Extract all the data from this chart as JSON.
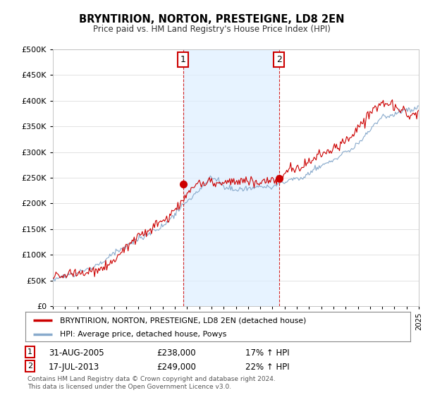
{
  "title": "BRYNTIRION, NORTON, PRESTEIGNE, LD8 2EN",
  "subtitle": "Price paid vs. HM Land Registry's House Price Index (HPI)",
  "legend_line1": "BRYNTIRION, NORTON, PRESTEIGNE, LD8 2EN (detached house)",
  "legend_line2": "HPI: Average price, detached house, Powys",
  "annotation1_label": "1",
  "annotation1_date": "31-AUG-2005",
  "annotation1_price": "£238,000",
  "annotation1_hpi": "17% ↑ HPI",
  "annotation1_year": 2005.67,
  "annotation1_value": 238000,
  "annotation2_label": "2",
  "annotation2_date": "17-JUL-2013",
  "annotation2_price": "£249,000",
  "annotation2_hpi": "22% ↑ HPI",
  "annotation2_year": 2013.54,
  "annotation2_value": 249000,
  "y_min": 0,
  "y_max": 500000,
  "y_ticks": [
    0,
    50000,
    100000,
    150000,
    200000,
    250000,
    300000,
    350000,
    400000,
    450000,
    500000
  ],
  "x_min": 1995,
  "x_max": 2025,
  "plot_bg_color": "#ffffff",
  "outer_bg_color": "#ffffff",
  "shade_color": "#ddeeff",
  "red_color": "#cc0000",
  "blue_color": "#88aacc",
  "grid_color": "#dddddd",
  "footnote_line1": "Contains HM Land Registry data © Crown copyright and database right 2024.",
  "footnote_line2": "This data is licensed under the Open Government Licence v3.0."
}
